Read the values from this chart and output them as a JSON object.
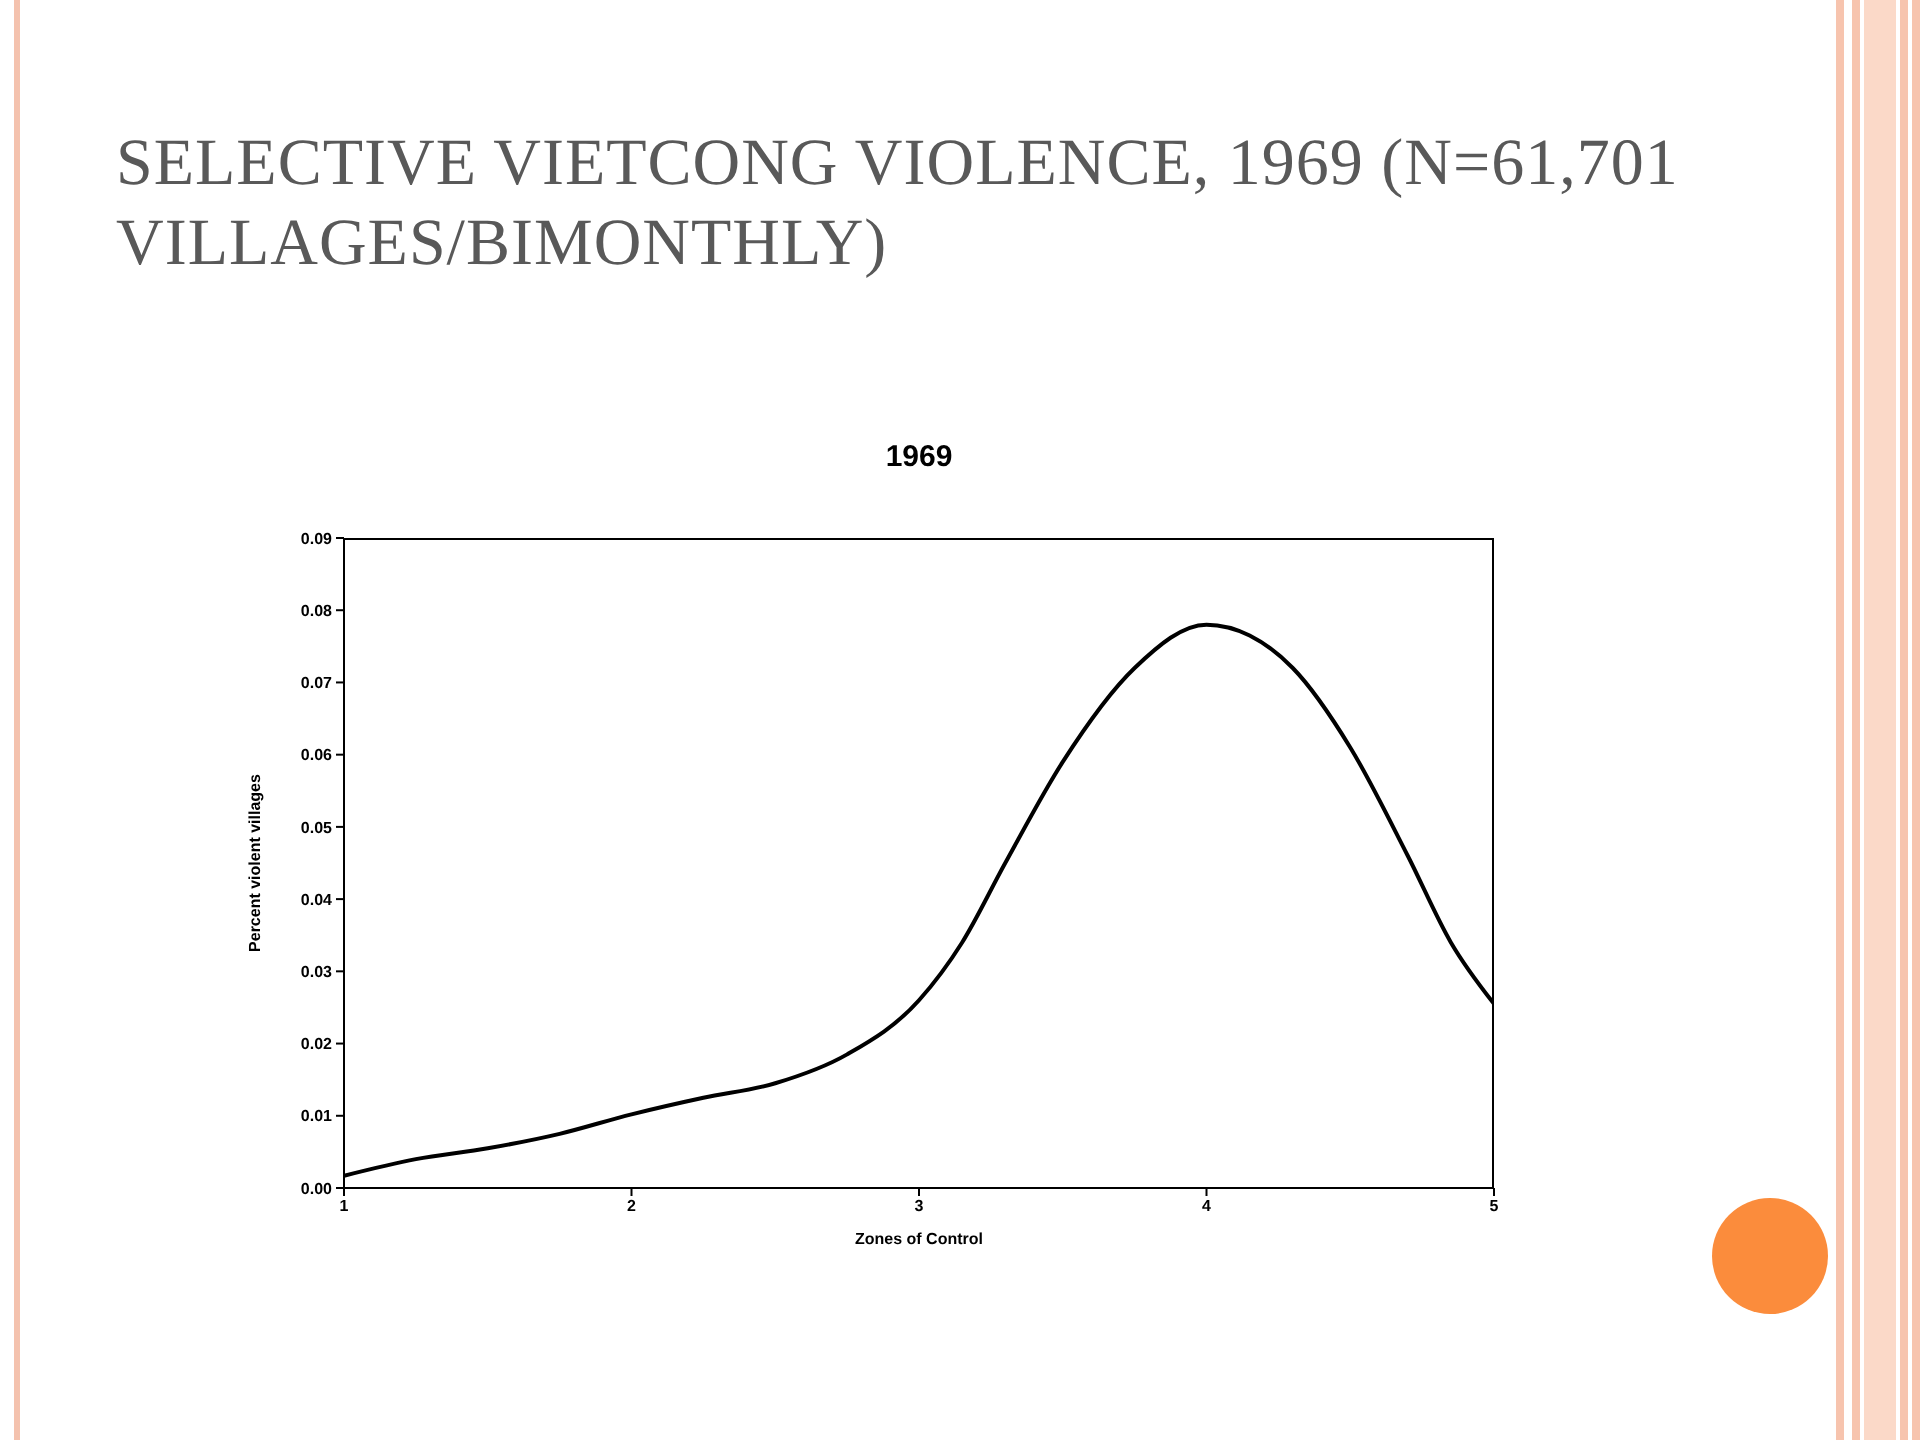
{
  "chart_data": {
    "type": "line",
    "title": "SELECTIVE VIETCONG VIOLENCE, 1969 (N=61,701 VILLAGES/BIMONTHLY)",
    "subtitle": "1969",
    "xlabel": "Zones of Control",
    "ylabel": "Percent violent villages",
    "x": [
      1,
      1.25,
      1.5,
      1.75,
      2,
      2.25,
      2.5,
      2.75,
      3,
      3.15,
      3.3,
      3.5,
      3.75,
      4,
      4.15,
      4.3,
      4.5,
      4.7,
      4.85,
      5
    ],
    "series": [
      {
        "color": "#000000",
        "values": [
          0.0017,
          0.004,
          0.0055,
          0.0075,
          0.0102,
          0.0125,
          0.0145,
          0.0185,
          0.026,
          0.034,
          0.045,
          0.059,
          0.072,
          0.078,
          0.0765,
          0.072,
          0.061,
          0.046,
          0.034,
          0.0255
        ]
      }
    ],
    "xlim": [
      1,
      5
    ],
    "xticks": [
      1,
      2,
      3,
      4,
      5
    ],
    "ylim": [
      0,
      0.09
    ],
    "yticks": [
      {
        "value": 0,
        "label": "0.00"
      },
      {
        "value": 0.01,
        "label": "0.01"
      },
      {
        "value": 0.02,
        "label": "0.02"
      },
      {
        "value": 0.03,
        "label": "0.03"
      },
      {
        "value": 0.04,
        "label": "0.04"
      },
      {
        "value": 0.05,
        "label": "0.05"
      },
      {
        "value": 0.06,
        "label": "0.06"
      },
      {
        "value": 0.07,
        "label": "0.07"
      },
      {
        "value": 0.08,
        "label": "0.08"
      },
      {
        "value": 0.09,
        "label": "0.09"
      }
    ],
    "grid": false,
    "legend": false,
    "marker": "none",
    "line_style": "solid"
  }
}
